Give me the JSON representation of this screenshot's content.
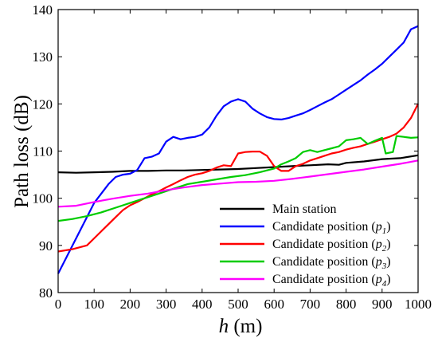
{
  "chart_data": {
    "type": "line",
    "xlabel": {
      "var": "h",
      "unit": " (m)"
    },
    "ylabel": "Path loss (dB)",
    "xlim": [
      0,
      1000
    ],
    "ylim": [
      80,
      140
    ],
    "xticks": [
      0,
      100,
      200,
      300,
      400,
      500,
      600,
      700,
      800,
      900,
      1000
    ],
    "yticks": [
      80,
      90,
      100,
      110,
      120,
      130,
      140
    ],
    "grid": false,
    "legend_position": "bottom-right",
    "series": [
      {
        "name": "Main station",
        "sub": "",
        "color": "#000000",
        "points": [
          [
            0,
            105.5
          ],
          [
            50,
            105.4
          ],
          [
            100,
            105.5
          ],
          [
            150,
            105.6
          ],
          [
            200,
            105.8
          ],
          [
            250,
            105.8
          ],
          [
            300,
            105.9
          ],
          [
            350,
            105.9
          ],
          [
            400,
            106
          ],
          [
            450,
            106.1
          ],
          [
            500,
            106.2
          ],
          [
            550,
            106.4
          ],
          [
            600,
            106.6
          ],
          [
            650,
            106.8
          ],
          [
            700,
            107
          ],
          [
            750,
            107.2
          ],
          [
            780,
            107.1
          ],
          [
            800,
            107.5
          ],
          [
            850,
            107.8
          ],
          [
            900,
            108.3
          ],
          [
            950,
            108.5
          ],
          [
            1000,
            109.1
          ]
        ]
      },
      {
        "name": "Candidate position (",
        "sub": "p1",
        "color": "#0000ff",
        "points": [
          [
            0,
            84
          ],
          [
            20,
            87
          ],
          [
            40,
            90
          ],
          [
            60,
            93
          ],
          [
            80,
            96
          ],
          [
            100,
            99
          ],
          [
            120,
            101
          ],
          [
            140,
            103
          ],
          [
            160,
            104.5
          ],
          [
            180,
            105
          ],
          [
            200,
            105.2
          ],
          [
            220,
            106
          ],
          [
            240,
            108.5
          ],
          [
            260,
            108.8
          ],
          [
            280,
            109.5
          ],
          [
            300,
            112
          ],
          [
            320,
            113
          ],
          [
            340,
            112.5
          ],
          [
            360,
            112.8
          ],
          [
            380,
            113
          ],
          [
            400,
            113.5
          ],
          [
            420,
            115
          ],
          [
            440,
            117.5
          ],
          [
            460,
            119.5
          ],
          [
            480,
            120.5
          ],
          [
            500,
            121
          ],
          [
            520,
            120.5
          ],
          [
            540,
            119
          ],
          [
            560,
            118
          ],
          [
            580,
            117.2
          ],
          [
            600,
            116.8
          ],
          [
            620,
            116.7
          ],
          [
            640,
            117
          ],
          [
            660,
            117.5
          ],
          [
            680,
            118
          ],
          [
            700,
            118.7
          ],
          [
            720,
            119.5
          ],
          [
            740,
            120.3
          ],
          [
            760,
            121
          ],
          [
            780,
            122
          ],
          [
            800,
            123
          ],
          [
            820,
            124
          ],
          [
            840,
            125
          ],
          [
            860,
            126.2
          ],
          [
            880,
            127.3
          ],
          [
            900,
            128.5
          ],
          [
            920,
            130
          ],
          [
            940,
            131.5
          ],
          [
            960,
            133
          ],
          [
            980,
            135.8
          ],
          [
            1000,
            136.5
          ]
        ]
      },
      {
        "name": "Candidate position (",
        "sub": "p2",
        "color": "#ff0000",
        "points": [
          [
            0,
            88.7
          ],
          [
            40,
            89.2
          ],
          [
            80,
            90
          ],
          [
            100,
            91.5
          ],
          [
            120,
            93
          ],
          [
            140,
            94.5
          ],
          [
            160,
            96
          ],
          [
            180,
            97.5
          ],
          [
            200,
            98.5
          ],
          [
            220,
            99.2
          ],
          [
            240,
            100
          ],
          [
            260,
            100.8
          ],
          [
            280,
            101.5
          ],
          [
            300,
            102.3
          ],
          [
            320,
            103
          ],
          [
            340,
            103.8
          ],
          [
            360,
            104.5
          ],
          [
            380,
            105
          ],
          [
            400,
            105.3
          ],
          [
            420,
            105.8
          ],
          [
            440,
            106.5
          ],
          [
            460,
            107
          ],
          [
            480,
            106.8
          ],
          [
            500,
            109.5
          ],
          [
            520,
            109.8
          ],
          [
            540,
            109.9
          ],
          [
            560,
            109.9
          ],
          [
            580,
            109
          ],
          [
            600,
            106.8
          ],
          [
            620,
            105.8
          ],
          [
            640,
            105.8
          ],
          [
            660,
            106.8
          ],
          [
            680,
            107.3
          ],
          [
            700,
            108
          ],
          [
            720,
            108.5
          ],
          [
            740,
            109
          ],
          [
            760,
            109.5
          ],
          [
            780,
            109.8
          ],
          [
            800,
            110.3
          ],
          [
            820,
            110.7
          ],
          [
            840,
            111
          ],
          [
            860,
            111.5
          ],
          [
            880,
            112
          ],
          [
            900,
            112.5
          ],
          [
            920,
            113
          ],
          [
            940,
            113.7
          ],
          [
            960,
            115
          ],
          [
            980,
            117
          ],
          [
            1000,
            120
          ]
        ]
      },
      {
        "name": "Candidate position (",
        "sub": "p3",
        "color": "#00cc00",
        "points": [
          [
            0,
            95.2
          ],
          [
            40,
            95.6
          ],
          [
            80,
            96.2
          ],
          [
            120,
            97
          ],
          [
            160,
            98
          ],
          [
            200,
            99
          ],
          [
            240,
            100
          ],
          [
            280,
            101
          ],
          [
            320,
            102
          ],
          [
            360,
            103
          ],
          [
            400,
            103.5
          ],
          [
            440,
            104
          ],
          [
            480,
            104.5
          ],
          [
            520,
            104.9
          ],
          [
            560,
            105.5
          ],
          [
            600,
            106.3
          ],
          [
            620,
            107.2
          ],
          [
            640,
            107.8
          ],
          [
            660,
            108.5
          ],
          [
            680,
            109.8
          ],
          [
            700,
            110.2
          ],
          [
            720,
            109.8
          ],
          [
            740,
            110.2
          ],
          [
            760,
            110.6
          ],
          [
            780,
            111
          ],
          [
            800,
            112.3
          ],
          [
            820,
            112.5
          ],
          [
            840,
            112.8
          ],
          [
            860,
            111.5
          ],
          [
            880,
            112.2
          ],
          [
            900,
            112.8
          ],
          [
            910,
            109.5
          ],
          [
            930,
            109.8
          ],
          [
            940,
            113.2
          ],
          [
            960,
            113
          ],
          [
            980,
            112.8
          ],
          [
            1000,
            112.9
          ]
        ]
      },
      {
        "name": "Candidate position (",
        "sub": "p4",
        "color": "#ff00ff",
        "points": [
          [
            0,
            98.2
          ],
          [
            50,
            98.4
          ],
          [
            100,
            99.2
          ],
          [
            150,
            99.9
          ],
          [
            200,
            100.5
          ],
          [
            250,
            101
          ],
          [
            300,
            101.7
          ],
          [
            350,
            102.3
          ],
          [
            400,
            102.8
          ],
          [
            450,
            103.1
          ],
          [
            500,
            103.4
          ],
          [
            550,
            103.5
          ],
          [
            600,
            103.7
          ],
          [
            650,
            104.1
          ],
          [
            700,
            104.6
          ],
          [
            750,
            105.1
          ],
          [
            800,
            105.6
          ],
          [
            850,
            106.1
          ],
          [
            900,
            106.7
          ],
          [
            950,
            107.3
          ],
          [
            1000,
            108
          ]
        ]
      }
    ]
  }
}
